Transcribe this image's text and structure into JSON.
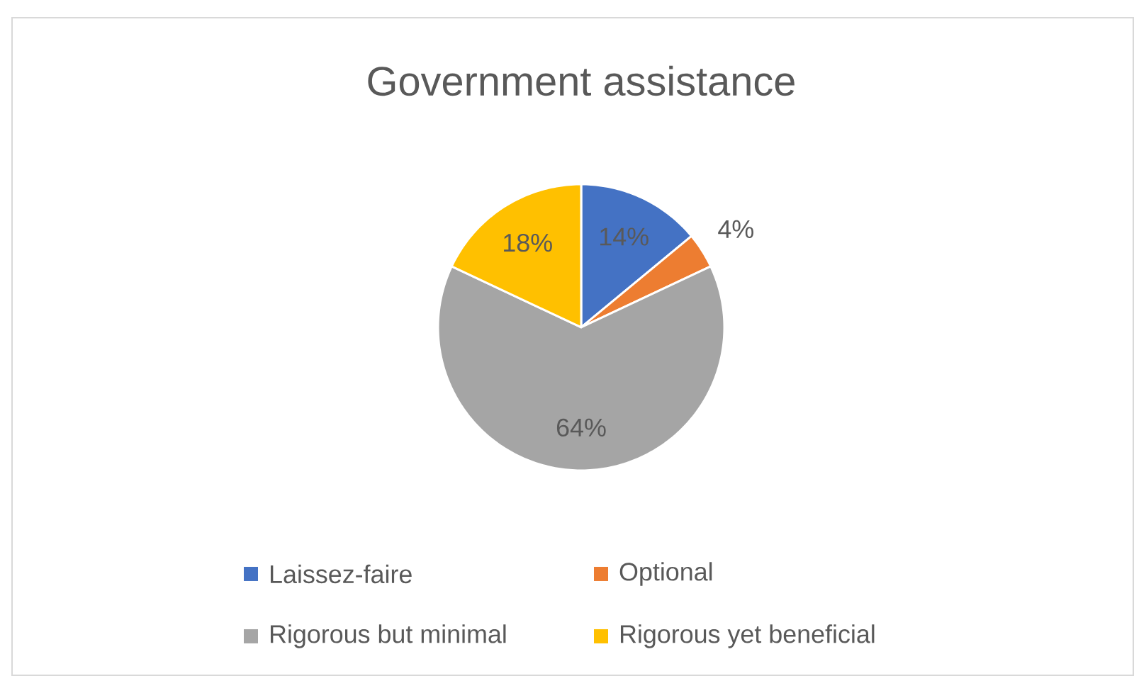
{
  "chart_data": {
    "type": "pie",
    "title": "Government assistance",
    "categories": [
      "Laissez-faire",
      "Optional",
      "Rigorous but minimal",
      "Rigorous yet beneficial"
    ],
    "values": [
      14,
      4,
      64,
      18
    ],
    "colors": [
      "#4472c4",
      "#ed7d31",
      "#a5a5a5",
      "#ffc000"
    ],
    "value_labels": [
      "14%",
      "4%",
      "64%",
      "18%"
    ],
    "legend": "bottom"
  }
}
